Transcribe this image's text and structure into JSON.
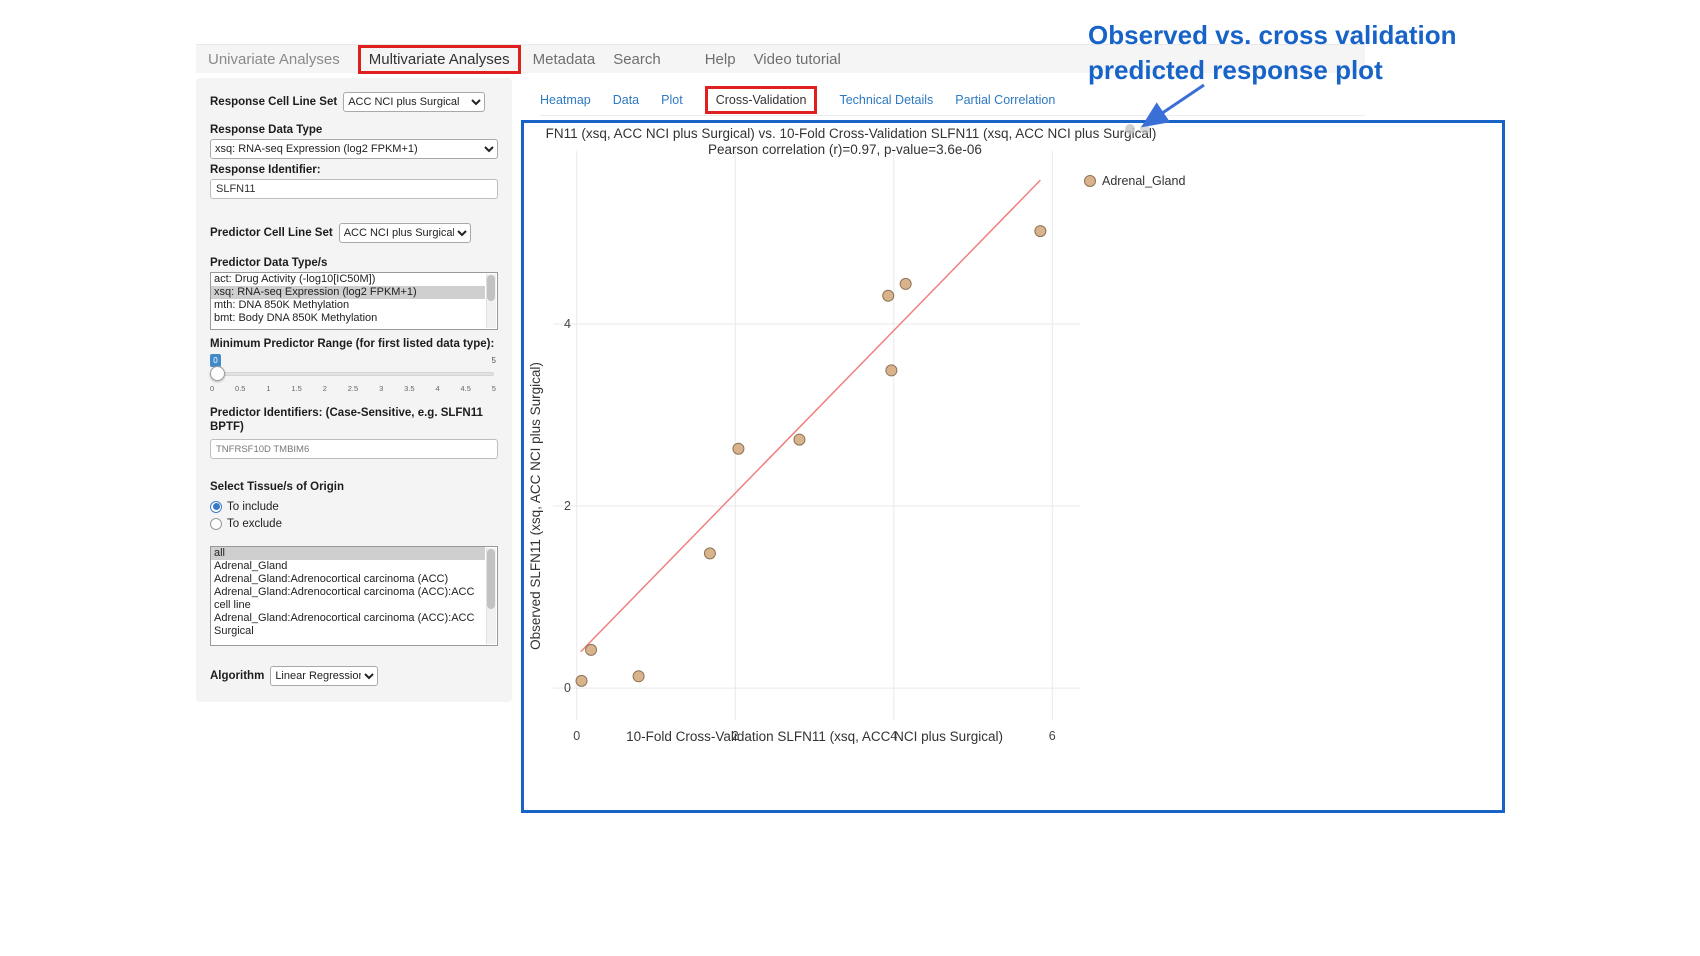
{
  "top_nav": {
    "items": [
      {
        "label": "Univariate Analyses"
      },
      {
        "label": "Multivariate Analyses"
      },
      {
        "label": "Metadata"
      },
      {
        "label": "Search"
      },
      {
        "label": "Help"
      },
      {
        "label": "Video tutorial"
      }
    ]
  },
  "subtabs": {
    "items": [
      {
        "label": "Heatmap"
      },
      {
        "label": "Data"
      },
      {
        "label": "Plot"
      },
      {
        "label": "Cross-Validation"
      },
      {
        "label": "Technical Details"
      },
      {
        "label": "Partial Correlation"
      }
    ]
  },
  "sidebar": {
    "response_cell_line_set": {
      "label": "Response Cell Line Set",
      "value": "ACC NCI plus Surgical"
    },
    "response_data_type": {
      "label": "Response Data Type",
      "value": "xsq: RNA-seq Expression (log2 FPKM+1)"
    },
    "response_identifier": {
      "label": "Response Identifier:",
      "value": "SLFN11"
    },
    "predictor_cell_line_set": {
      "label": "Predictor Cell Line Set",
      "value": "ACC NCI plus Surgical"
    },
    "predictor_data_types": {
      "label": "Predictor Data Type/s",
      "options": [
        "act: Drug Activity (-log10[IC50M])",
        "xsq: RNA-seq Expression (log2 FPKM+1)",
        "mth: DNA 850K Methylation",
        "bmt: Body DNA 850K Methylation"
      ],
      "selected": "xsq: RNA-seq Expression (log2 FPKM+1)"
    },
    "min_predictor_range": {
      "label": "Minimum Predictor Range (for first listed data type):",
      "value": "0",
      "max_label": "5",
      "ticks": [
        "0",
        "0.5",
        "1",
        "1.5",
        "2",
        "2.5",
        "3",
        "3.5",
        "4",
        "4.5",
        "5"
      ]
    },
    "predictor_identifiers": {
      "label": "Predictor Identifiers: (Case-Sensitive, e.g. SLFN11 BPTF)",
      "value": "TNFRSF10D TMBIM6"
    },
    "tissue_origin": {
      "label": "Select Tissue/s of Origin",
      "options": [
        {
          "label": "To include",
          "selected": true
        },
        {
          "label": "To exclude",
          "selected": false
        }
      ]
    },
    "tissue_list": {
      "options": [
        "all",
        "Adrenal_Gland",
        "Adrenal_Gland:Adrenocortical carcinoma (ACC)",
        "Adrenal_Gland:Adrenocortical carcinoma (ACC):ACC cell line",
        "Adrenal_Gland:Adrenocortical carcinoma (ACC):ACC Surgical"
      ],
      "selected": "all"
    },
    "algorithm": {
      "label": "Algorithm",
      "value": "Linear Regression"
    }
  },
  "annotation": {
    "line1": "Observed vs. cross validation",
    "line2": "predicted response plot",
    "color": "#1763c8"
  },
  "chart_data": {
    "type": "scatter",
    "title": "FN11 (xsq, ACC NCI plus Surgical) vs. 10-Fold Cross-Validation SLFN11 (xsq, ACC NCI plus Surgical)",
    "subtitle": "Pearson correlation (r)=0.97, p-value=3.6e-06",
    "xlabel": "10-Fold Cross-Validation SLFN11 (xsq, ACC NCI plus Surgical)",
    "ylabel": "Observed SLFN11 (xsq, ACC NCI plus Surgical)",
    "xlim": [
      -0.3,
      6.35
    ],
    "ylim": [
      -0.35,
      5.9
    ],
    "xticks": [
      0,
      2,
      4,
      6
    ],
    "yticks": [
      0,
      2,
      4
    ],
    "grid": true,
    "legend_position": "right",
    "legend": [
      {
        "label": "Adrenal_Gland",
        "color": "#d9b38c"
      }
    ],
    "series": [
      {
        "name": "Adrenal_Gland",
        "points": [
          [
            0.06,
            0.08
          ],
          [
            0.18,
            0.42
          ],
          [
            0.78,
            0.13
          ],
          [
            1.68,
            1.48
          ],
          [
            2.04,
            2.63
          ],
          [
            2.81,
            2.73
          ],
          [
            3.93,
            4.31
          ],
          [
            3.97,
            3.49
          ],
          [
            4.15,
            4.44
          ],
          [
            5.85,
            5.02
          ]
        ]
      }
    ],
    "fit_line": {
      "x1": 0.05,
      "y1": 0.4,
      "x2": 5.85,
      "y2": 5.58,
      "color": "#f08080"
    },
    "point_color": "#d9b38c",
    "point_stroke": "#8c7355"
  }
}
